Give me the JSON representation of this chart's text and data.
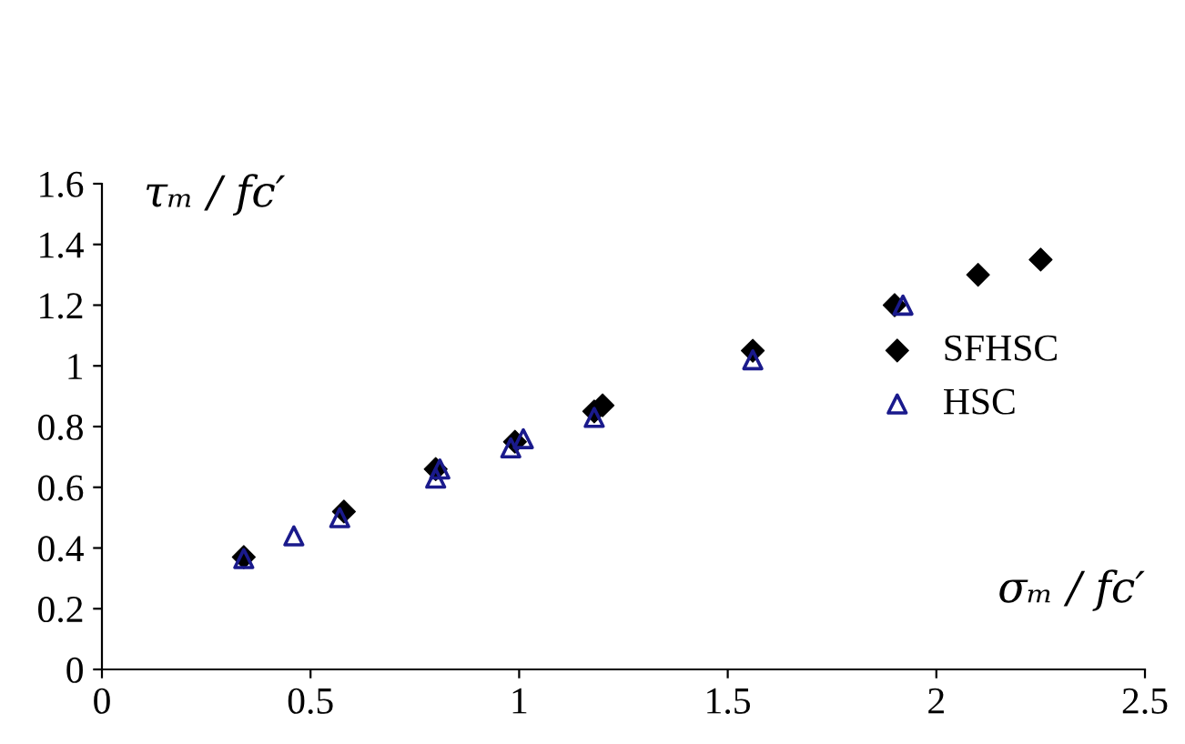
{
  "chart_data": {
    "type": "scatter",
    "xlabel": "σₘ / fc′",
    "ylabel": "τₘ / fc′",
    "xlim": [
      0,
      2.5
    ],
    "ylim": [
      0,
      1.6
    ],
    "xticks": [
      0,
      0.5,
      1,
      1.5,
      2,
      2.5
    ],
    "yticks": [
      0,
      0.2,
      0.4,
      0.6,
      0.8,
      1,
      1.2,
      1.4,
      1.6
    ],
    "grid": false,
    "legend": "right",
    "series": [
      {
        "name": "SFHSC",
        "color": "#000000",
        "marker": "diamond",
        "x": [
          0.34,
          0.58,
          0.8,
          0.99,
          1.18,
          1.2,
          1.56,
          1.9,
          2.1,
          2.25
        ],
        "values": [
          0.37,
          0.52,
          0.66,
          0.75,
          0.85,
          0.87,
          1.05,
          1.2,
          1.3,
          1.35
        ]
      },
      {
        "name": "HSC",
        "color": "#1a1a8c",
        "marker": "triangle",
        "x": [
          0.34,
          0.46,
          0.57,
          0.8,
          0.81,
          0.98,
          1.01,
          1.18,
          1.56,
          1.92
        ],
        "values": [
          0.365,
          0.44,
          0.5,
          0.63,
          0.66,
          0.73,
          0.76,
          0.83,
          1.02,
          1.2
        ]
      }
    ]
  }
}
